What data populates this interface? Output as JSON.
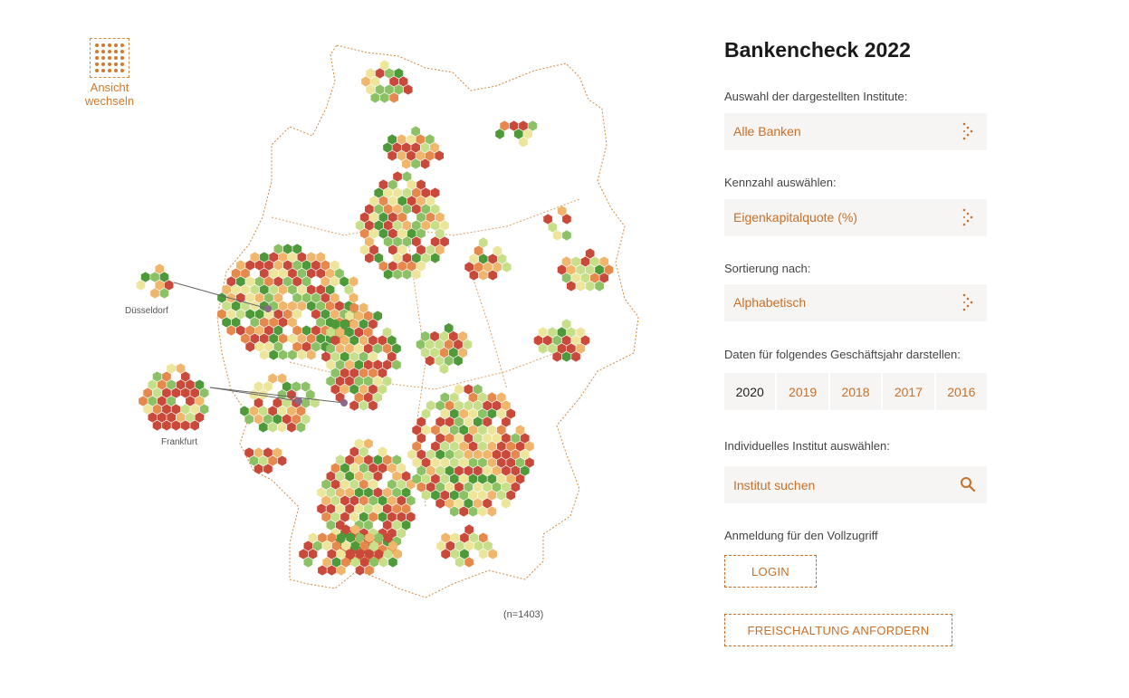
{
  "view_toggle": {
    "label_line1": "Ansicht",
    "label_line2": "wechseln"
  },
  "map": {
    "city_labels": [
      "Düsseldorf",
      "Frankfurt"
    ],
    "n_count": "(n=1403)",
    "colors": {
      "dark_green": "#4e9a3a",
      "green": "#8cc265",
      "light_green": "#c6df88",
      "yellow": "#ece59a",
      "orange_light": "#f0b66c",
      "orange": "#e58a4c",
      "red": "#c9493a",
      "outline": "#d48a3c"
    }
  },
  "panel": {
    "title": "Bankencheck 2022",
    "institute_label": "Auswahl der dargestellten Institute:",
    "institute_value": "Alle Banken",
    "metric_label": "Kennzahl auswählen:",
    "metric_value": "Eigenkapitalquote (%)",
    "sort_label": "Sortierung nach:",
    "sort_value": "Alphabetisch",
    "year_label": "Daten für folgendes Geschäftsjahr darstellen:",
    "years": [
      "2020",
      "2019",
      "2018",
      "2017",
      "2016"
    ],
    "selected_year": "2020",
    "search_label": "Individuelles Institut auswählen:",
    "search_placeholder": "Institut suchen",
    "login_label": "Anmeldung für den Vollzugriff",
    "login_button": "LOGIN",
    "request_button": "FREISCHALTUNG ANFORDERN"
  }
}
